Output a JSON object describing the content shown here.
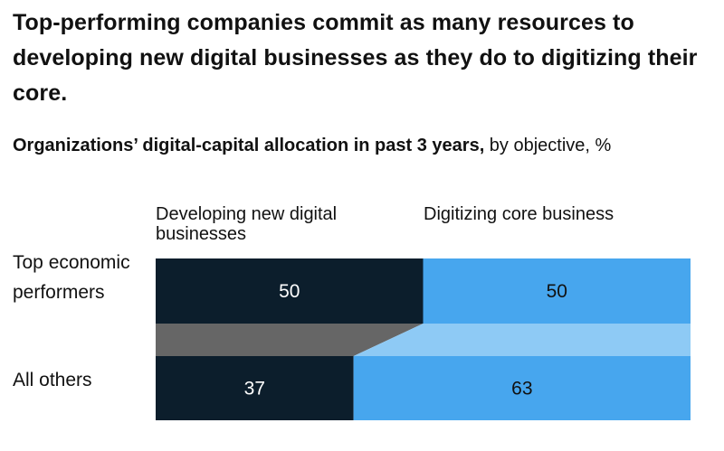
{
  "headline": "Top-performing companies commit as many resources to developing new digital businesses as they do to digitizing their core.",
  "subtitle": {
    "bold": "Organizations’ digital-capital allocation in past 3 years,",
    "regular": " by objective, %"
  },
  "colors": {
    "developing": "#0c1e2c",
    "digitizing": "#47a6ee",
    "connector_left": "#666666",
    "connector_right": "#8ecaf5",
    "label_on_dark": "#ffffff",
    "label_on_light": "#111111"
  },
  "chart_data": {
    "type": "bar",
    "stacked": true,
    "orientation": "horizontal",
    "categories": [
      "Top economic performers",
      "All others"
    ],
    "series": [
      {
        "name": "Developing new digital businesses",
        "values": [
          50,
          37
        ]
      },
      {
        "name": "Digitizing core business",
        "values": [
          50,
          63
        ]
      }
    ],
    "xlim": [
      0,
      100
    ]
  }
}
